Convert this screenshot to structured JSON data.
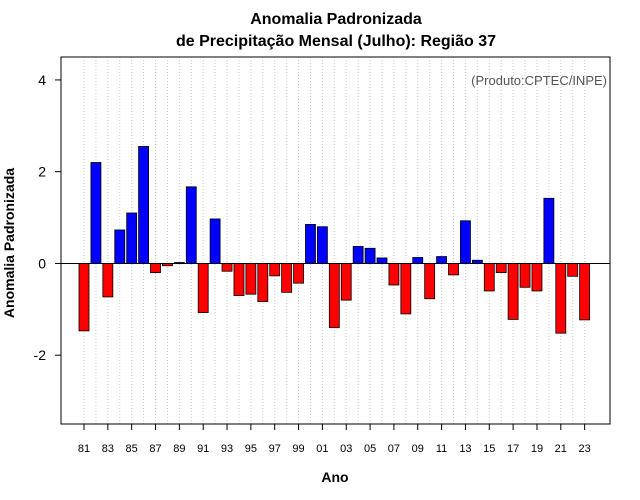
{
  "chart_data": {
    "type": "bar",
    "title_line1": "Anomalia Padronizada",
    "title_line2": "de Precipitação Mensal (Julho): Região 37",
    "xlabel": "Ano",
    "ylabel": "Anomalia Padronizada",
    "annotation": "(Produto:CPTEC/INPE)",
    "ylim": [
      -3.5,
      4.5
    ],
    "yticks": [
      -2,
      0,
      2,
      4
    ],
    "ytick_labels": [
      "-2",
      "0",
      "2",
      "4"
    ],
    "grid": "vertical dotted",
    "positive_color": "#0000ff",
    "negative_color": "#ff0000",
    "categories": [
      "81",
      "82",
      "83",
      "84",
      "85",
      "86",
      "87",
      "88",
      "89",
      "90",
      "91",
      "92",
      "93",
      "94",
      "95",
      "96",
      "97",
      "98",
      "99",
      "00",
      "01",
      "02",
      "03",
      "04",
      "05",
      "06",
      "07",
      "08",
      "09",
      "10",
      "11",
      "12",
      "13",
      "14",
      "15",
      "16",
      "17",
      "18",
      "19",
      "20",
      "21",
      "22",
      "23"
    ],
    "xtick_labels": [
      "81",
      "83",
      "85",
      "87",
      "89",
      "91",
      "93",
      "95",
      "97",
      "99",
      "01",
      "03",
      "05",
      "07",
      "09",
      "11",
      "13",
      "15",
      "17",
      "19",
      "21",
      "23"
    ],
    "values": [
      -1.47,
      2.2,
      -0.73,
      0.73,
      1.1,
      2.55,
      -0.2,
      -0.05,
      0.02,
      1.67,
      -1.07,
      0.97,
      -0.17,
      -0.7,
      -0.67,
      -0.83,
      -0.27,
      -0.63,
      -0.43,
      0.85,
      0.8,
      -1.4,
      -0.8,
      0.37,
      0.33,
      0.12,
      -0.47,
      -1.1,
      0.13,
      -0.77,
      0.15,
      -0.25,
      0.93,
      0.07,
      -0.6,
      -0.2,
      -1.22,
      -0.52,
      -0.6,
      1.42,
      -1.52,
      -0.28,
      -1.23
    ]
  }
}
